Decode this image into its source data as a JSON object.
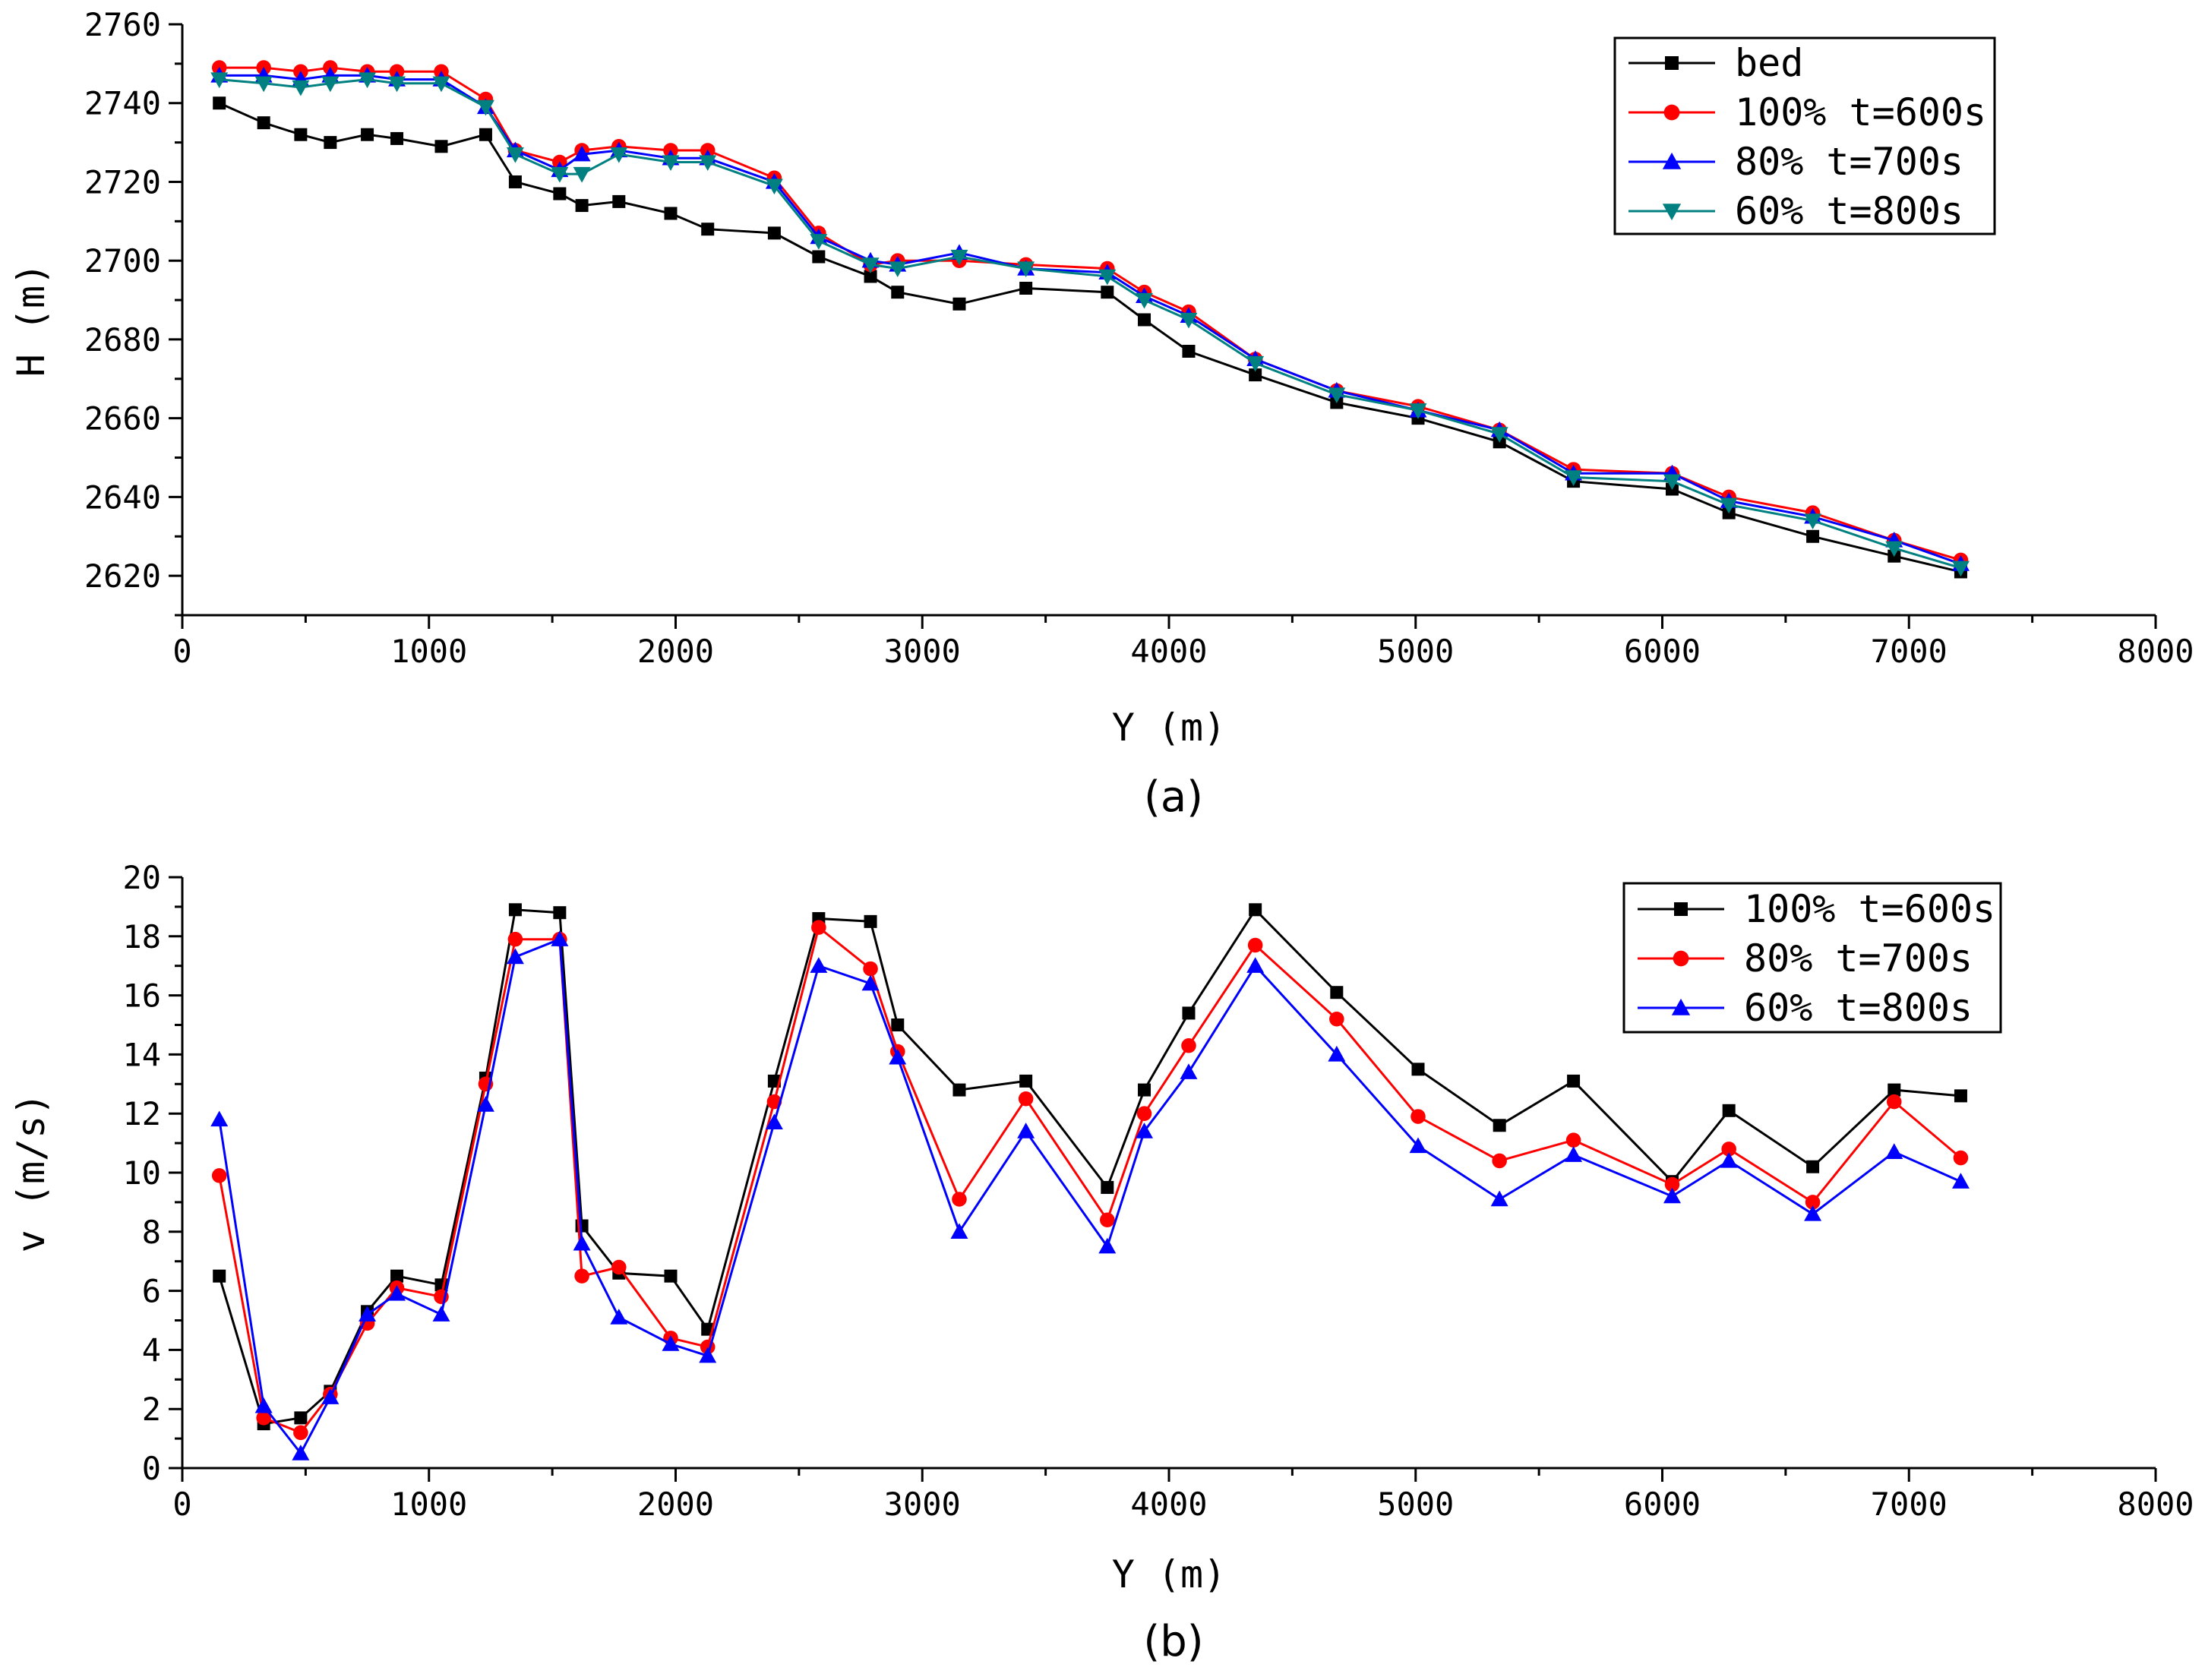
{
  "chart_data": [
    {
      "type": "line",
      "panel_label": "(a)",
      "xlabel": "Y (m)",
      "ylabel": "H (m)",
      "xlim": [
        0,
        8000
      ],
      "ylim": [
        2610,
        2760
      ],
      "xticks": [
        0,
        1000,
        2000,
        3000,
        4000,
        5000,
        6000,
        7000,
        8000
      ],
      "yticks": [
        2620,
        2640,
        2660,
        2680,
        2700,
        2720,
        2740,
        2760
      ],
      "legend_position": "top-right",
      "x": [
        150,
        330,
        480,
        600,
        750,
        870,
        1050,
        1230,
        1350,
        1530,
        1620,
        1770,
        1980,
        2130,
        2400,
        2580,
        2790,
        2900,
        3150,
        3420,
        3750,
        3900,
        4080,
        4350,
        4680,
        5010,
        5340,
        5640,
        6040,
        6270,
        6610,
        6940,
        7210
      ],
      "series": [
        {
          "name": "bed",
          "color": "#000000",
          "marker": "square",
          "values": [
            2740,
            2735,
            2732,
            2730,
            2732,
            2731,
            2729,
            2732,
            2720,
            2717,
            2714,
            2715,
            2712,
            2708,
            2707,
            2701,
            2696,
            2692,
            2689,
            2693,
            2692,
            2685,
            2677,
            2671,
            2664,
            2660,
            2654,
            2644,
            2642,
            2636,
            2630,
            2625,
            2621
          ]
        },
        {
          "name": "100% t=600s",
          "color": "#ff0000",
          "marker": "circle",
          "values": [
            2749,
            2749,
            2748,
            2749,
            2748,
            2748,
            2748,
            2741,
            2728,
            2725,
            2728,
            2729,
            2728,
            2728,
            2721,
            2707,
            2699,
            2700,
            2700,
            2699,
            2698,
            2692,
            2687,
            2675,
            2667,
            2663,
            2657,
            2647,
            2646,
            2640,
            2636,
            2629,
            2624
          ]
        },
        {
          "name": "80% t=700s",
          "color": "#0000ff",
          "marker": "triangle-up",
          "values": [
            2747,
            2747,
            2746,
            2747,
            2747,
            2746,
            2746,
            2739,
            2728,
            2723,
            2727,
            2728,
            2726,
            2726,
            2720,
            2706,
            2700,
            2699,
            2702,
            2698,
            2697,
            2691,
            2686,
            2675,
            2667,
            2662,
            2657,
            2646,
            2646,
            2639,
            2635,
            2629,
            2623
          ]
        },
        {
          "name": "60% t=800s",
          "color": "#008080",
          "marker": "triangle-down",
          "values": [
            2746,
            2745,
            2744,
            2745,
            2746,
            2745,
            2745,
            2739,
            2727,
            2722,
            2722,
            2727,
            2725,
            2725,
            2719,
            2705,
            2699,
            2698,
            2701,
            2698,
            2696,
            2690,
            2685,
            2674,
            2666,
            2662,
            2656,
            2645,
            2644,
            2638,
            2634,
            2627,
            2622
          ]
        }
      ]
    },
    {
      "type": "line",
      "panel_label": "(b)",
      "xlabel": "Y (m)",
      "ylabel": "v (m/s)",
      "xlim": [
        0,
        8000
      ],
      "ylim": [
        0,
        20
      ],
      "xticks": [
        0,
        1000,
        2000,
        3000,
        4000,
        5000,
        6000,
        7000,
        8000
      ],
      "yticks": [
        0,
        2,
        4,
        6,
        8,
        10,
        12,
        14,
        16,
        18,
        20
      ],
      "legend_position": "top-right",
      "x": [
        150,
        330,
        480,
        600,
        750,
        870,
        1050,
        1230,
        1350,
        1530,
        1620,
        1770,
        1980,
        2130,
        2400,
        2580,
        2790,
        2900,
        3150,
        3420,
        3750,
        3900,
        4080,
        4350,
        4680,
        5010,
        5340,
        5640,
        6040,
        6270,
        6610,
        6940,
        7210
      ],
      "series": [
        {
          "name": "100% t=600s",
          "color": "#000000",
          "marker": "square",
          "values": [
            6.5,
            1.5,
            1.7,
            2.6,
            5.3,
            6.5,
            6.2,
            13.2,
            18.9,
            18.8,
            8.2,
            6.6,
            6.5,
            4.7,
            13.1,
            18.6,
            18.5,
            15.0,
            12.8,
            13.1,
            9.5,
            12.8,
            15.4,
            18.9,
            16.1,
            13.5,
            11.6,
            13.1,
            9.7,
            12.1,
            10.2,
            12.8,
            12.6
          ]
        },
        {
          "name": "80% t=700s",
          "color": "#ff0000",
          "marker": "circle",
          "values": [
            9.9,
            1.7,
            1.2,
            2.5,
            4.9,
            6.1,
            5.8,
            13.0,
            17.9,
            17.9,
            6.5,
            6.8,
            4.4,
            4.1,
            12.4,
            18.3,
            16.9,
            14.1,
            9.1,
            12.5,
            8.4,
            12.0,
            14.3,
            17.7,
            15.2,
            11.9,
            10.4,
            11.1,
            9.6,
            10.8,
            9.0,
            12.4,
            10.5
          ]
        },
        {
          "name": "60% t=800s",
          "color": "#0000ff",
          "marker": "triangle-up",
          "values": [
            11.8,
            2.1,
            0.5,
            2.4,
            5.2,
            5.9,
            5.2,
            12.3,
            17.3,
            17.9,
            7.6,
            5.1,
            4.2,
            3.8,
            11.7,
            17.0,
            16.4,
            13.9,
            8.0,
            11.4,
            7.5,
            11.4,
            13.4,
            17.0,
            14.0,
            10.9,
            9.1,
            10.6,
            9.2,
            10.4,
            8.6,
            10.7,
            9.7
          ]
        }
      ]
    }
  ]
}
